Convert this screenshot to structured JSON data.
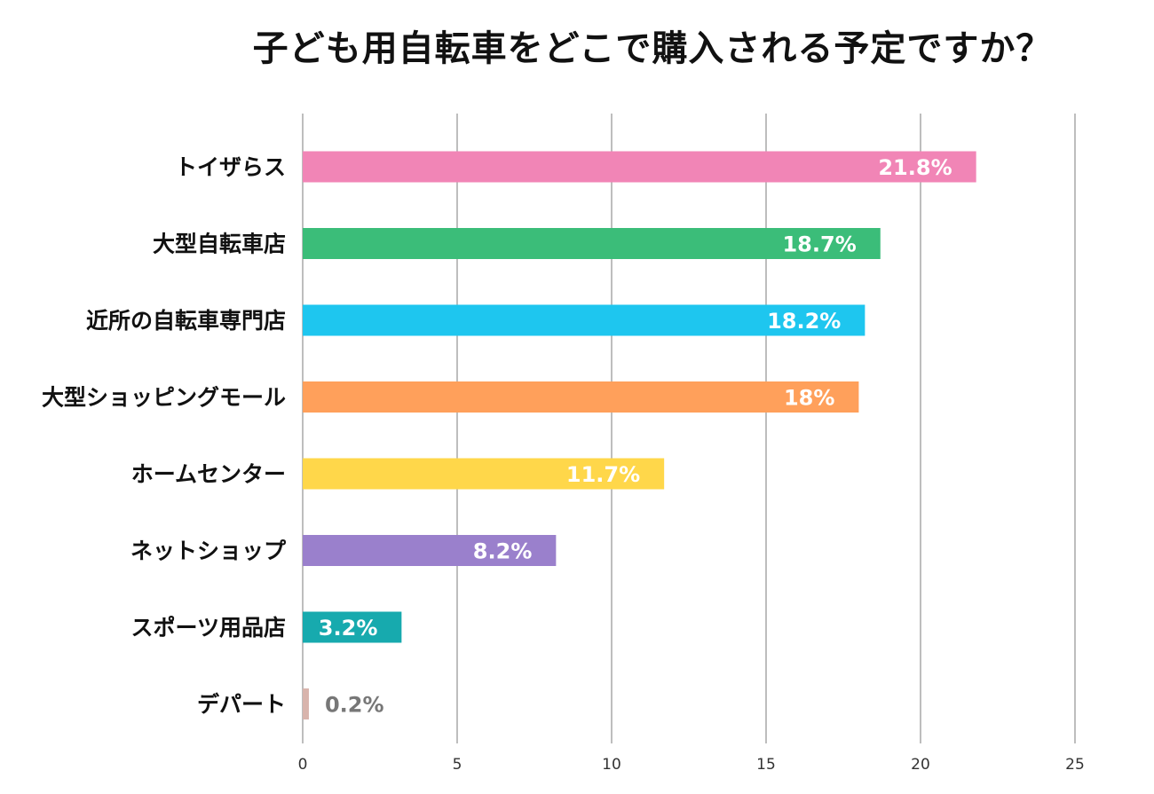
{
  "chart_data": {
    "type": "bar",
    "orientation": "horizontal",
    "title": "子ども用自転車をどこで購入される予定ですか？",
    "xlabel": "",
    "ylabel": "",
    "xlim": [
      0,
      25
    ],
    "xticks": [
      "0",
      "5",
      "10",
      "15",
      "20",
      "25"
    ],
    "grid": true,
    "legend": "none",
    "categories": [
      "トイザらス",
      "大型自転車店",
      "近所の自転車専門店",
      "大型ショッピングモール",
      "ホームセンター",
      "ネットショップ",
      "スポーツ用品店",
      "デパート"
    ],
    "values": [
      21.8,
      18.7,
      18.2,
      18,
      11.7,
      8.2,
      3.2,
      0.2
    ],
    "value_labels": [
      "21.8%",
      "18.7%",
      "18.2%",
      "18%",
      "11.7%",
      "8.2%",
      "3.2%",
      "0.2%"
    ],
    "colors": [
      "#f185b6",
      "#3bbd79",
      "#1ec6ef",
      "#ffa05b",
      "#ffd74a",
      "#9a80cc",
      "#17aaae",
      "#d8b4ac"
    ],
    "label_colors": [
      "#ffffff",
      "#ffffff",
      "#ffffff",
      "#ffffff",
      "#ffffff",
      "#ffffff",
      "#ffffff",
      "#777777"
    ]
  }
}
